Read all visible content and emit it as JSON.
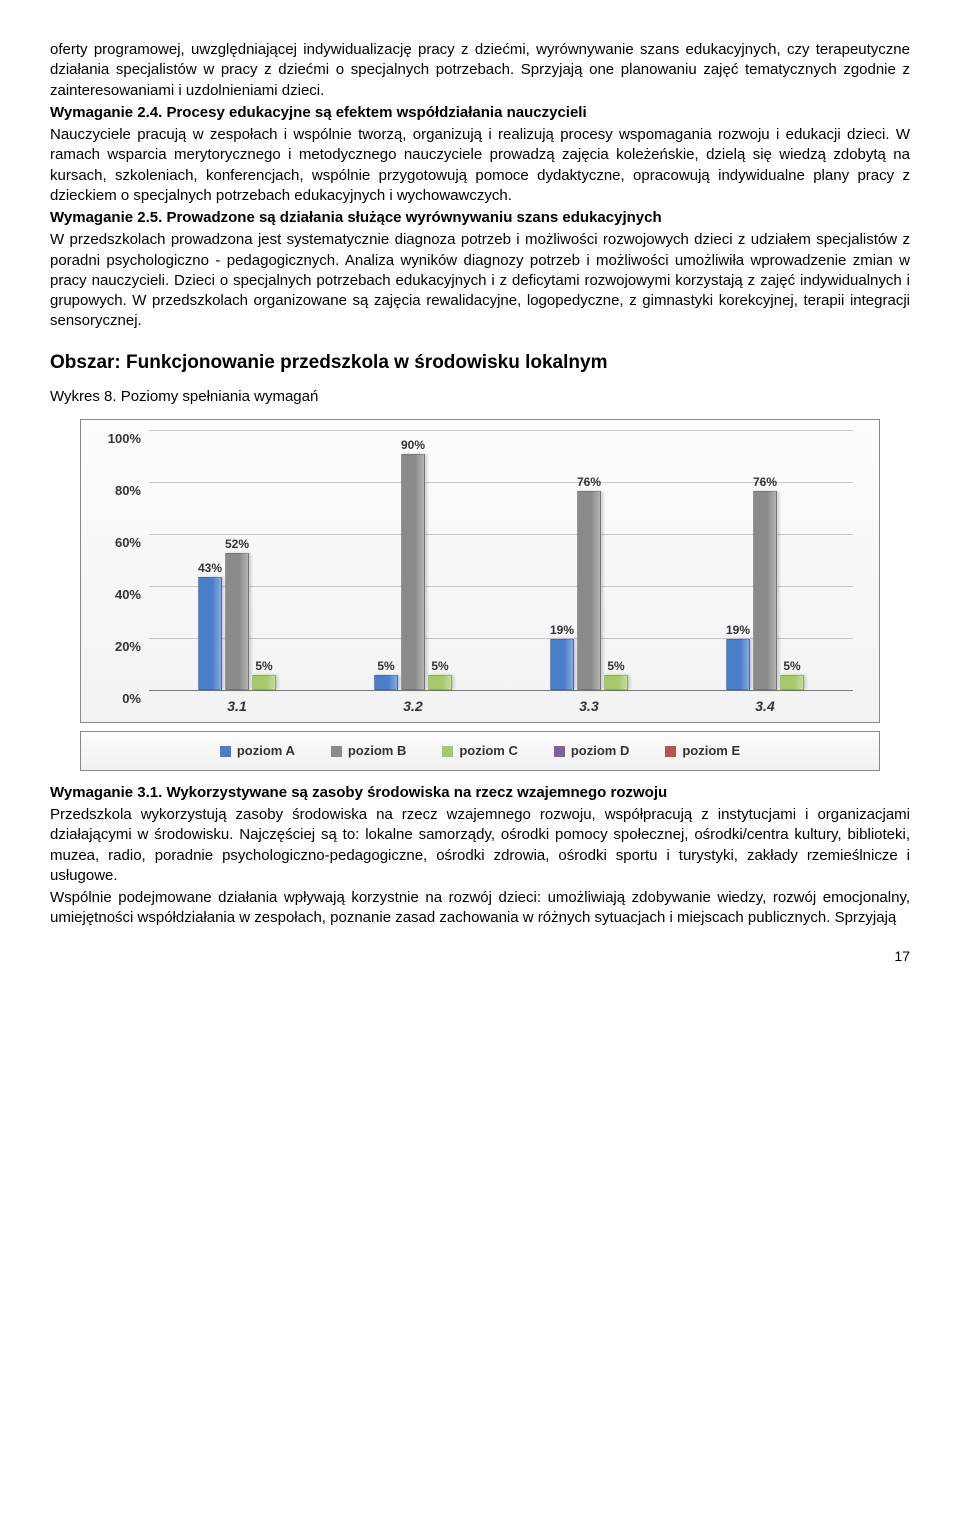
{
  "para1": "oferty programowej, uwzględniającej indywidualizację pracy z dziećmi, wyrównywanie szans edukacyjnych, czy terapeutyczne działania specjalistów w pracy z dziećmi o specjalnych potrzebach. Sprzyjają one planowaniu zajęć tematycznych zgodnie z zainteresowaniami i uzdolnieniami dzieci.",
  "w24_title": "Wymaganie 2.4. Procesy edukacyjne są efektem współdziałania nauczycieli",
  "w24_body": "Nauczyciele pracują w zespołach i wspólnie tworzą, organizują i realizują procesy wspomagania rozwoju i edukacji dzieci. W ramach wsparcia merytorycznego i metodycznego nauczyciele prowadzą zajęcia koleżeńskie, dzielą się wiedzą zdobytą na kursach, szkoleniach, konferencjach, wspólnie przygotowują pomoce dydaktyczne, opracowują indywidualne plany pracy z dzieckiem o specjalnych potrzebach edukacyjnych i wychowawczych.",
  "w25_title": "Wymaganie 2.5. Prowadzone są działania służące wyrównywaniu szans edukacyjnych",
  "w25_body": "W przedszkolach prowadzona jest systematycznie diagnoza potrzeb i możliwości rozwojowych dzieci z udziałem specjalistów z poradni psychologiczno - pedagogicznych. Analiza wyników diagnozy potrzeb i możliwości umożliwiła wprowadzenie zmian w pracy nauczycieli. Dzieci o specjalnych potrzebach edukacyjnych i z deficytami rozwojowymi korzystają z zajęć indywidualnych i grupowych. W przedszkolach organizowane są zajęcia rewalidacyjne, logopedyczne, z gimnastyki korekcyjnej, terapii integracji sensorycznej.",
  "section_heading": "Obszar: Funkcjonowanie przedszkola w środowisku lokalnym",
  "chart_caption": "Wykres 8. Poziomy spełniania wymagań",
  "chart": {
    "ylim": [
      0,
      100
    ],
    "ytick_step": 20,
    "ytick_suffix": "%",
    "categories": [
      "3.1",
      "3.2",
      "3.3",
      "3.4"
    ],
    "series": [
      {
        "name": "poziom A",
        "color": "#4a7ec8"
      },
      {
        "name": "poziom B",
        "color": "#8a8a8a"
      },
      {
        "name": "poziom C",
        "color": "#a6c96a"
      },
      {
        "name": "poziom D",
        "color": "#7d60a0"
      },
      {
        "name": "poziom E",
        "color": "#c0504d"
      }
    ],
    "groups": [
      {
        "bars": [
          {
            "v": 43,
            "lbl": "43%"
          },
          {
            "v": 52,
            "lbl": "52%"
          },
          {
            "v": 5,
            "lbl": "5%"
          },
          {
            "v": 0,
            "lbl": ""
          },
          {
            "v": 0,
            "lbl": ""
          }
        ]
      },
      {
        "bars": [
          {
            "v": 5,
            "lbl": "5%"
          },
          {
            "v": 90,
            "lbl": "90%"
          },
          {
            "v": 5,
            "lbl": "5%"
          },
          {
            "v": 0,
            "lbl": ""
          },
          {
            "v": 0,
            "lbl": ""
          }
        ]
      },
      {
        "bars": [
          {
            "v": 19,
            "lbl": "19%"
          },
          {
            "v": 76,
            "lbl": "76%"
          },
          {
            "v": 5,
            "lbl": "5%"
          },
          {
            "v": 0,
            "lbl": ""
          },
          {
            "v": 0,
            "lbl": ""
          }
        ]
      },
      {
        "bars": [
          {
            "v": 19,
            "lbl": "19%"
          },
          {
            "v": 76,
            "lbl": "76%"
          },
          {
            "v": 5,
            "lbl": "5%"
          },
          {
            "v": 0,
            "lbl": ""
          },
          {
            "v": 0,
            "lbl": ""
          }
        ]
      }
    ]
  },
  "w31_title": "Wymaganie 3.1. Wykorzystywane są zasoby środowiska na rzecz wzajemnego rozwoju",
  "w31_body": "Przedszkola wykorzystują zasoby środowiska na rzecz wzajemnego rozwoju, współpracują z instytucjami i organizacjami działającymi w środowisku. Najczęściej są to: lokalne samorządy, ośrodki pomocy społecznej, ośrodki/centra kultury, biblioteki, muzea, radio, poradnie psychologiczno-pedagogiczne, ośrodki zdrowia, ośrodki sportu i turystyki, zakłady rzemieślnicze i usługowe.",
  "w31_body2": "Wspólnie podejmowane działania wpływają korzystnie na rozwój dzieci: umożliwiają zdobywanie wiedzy, rozwój emocjonalny, umiejętności współdziałania w zespołach, poznanie zasad zachowania w różnych sytuacjach i miejscach publicznych. Sprzyjają",
  "page_number": "17"
}
